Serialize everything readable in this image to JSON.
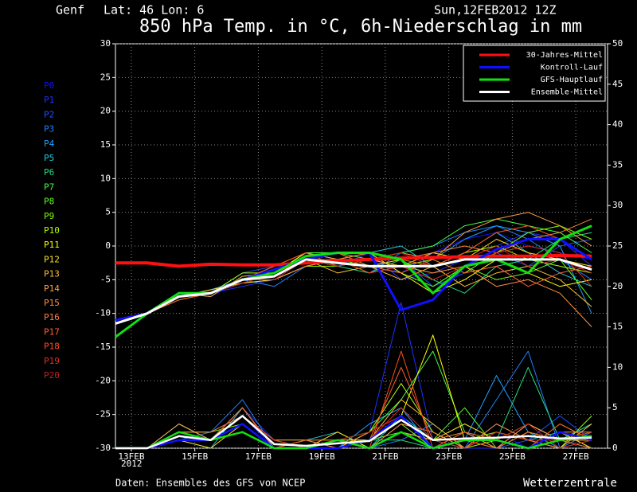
{
  "chart_data": {
    "type": "line",
    "location": "Genf",
    "coords": "Lat: 46 Lon: 6",
    "run": "Sun,12FEB2012 12Z",
    "title": "850 hPa Temp. in °C, 6h-Niederschlag in mm",
    "source": "Daten: Ensembles des GFS von NCEP",
    "brand": "Wetterzentrale",
    "year_label": "2012",
    "grid": true,
    "legend": "upper right",
    "x": [
      12.5,
      13.5,
      14.5,
      15.5,
      16.5,
      17.5,
      18.5,
      19.5,
      20.5,
      21.5,
      22.5,
      23.5,
      24.5,
      25.5,
      26.5,
      27.5
    ],
    "xlim": [
      12.5,
      28.0
    ],
    "xticks": [
      {
        "value": 13,
        "label": "13FEB"
      },
      {
        "value": 15,
        "label": "15FEB"
      },
      {
        "value": 17,
        "label": "17FEB"
      },
      {
        "value": 19,
        "label": "19FEB"
      },
      {
        "value": 21,
        "label": "21FEB"
      },
      {
        "value": 23,
        "label": "23FEB"
      },
      {
        "value": 25,
        "label": "25FEB"
      },
      {
        "value": 27,
        "label": "27FEB"
      }
    ],
    "ylim": [
      -30,
      30
    ],
    "yticks": [
      -30,
      -25,
      -20,
      -15,
      -10,
      -5,
      0,
      5,
      10,
      15,
      20,
      25,
      30
    ],
    "y2lim": [
      0,
      50
    ],
    "y2ticks": [
      0,
      5,
      10,
      15,
      20,
      25,
      30,
      35,
      40,
      45,
      50
    ],
    "series": [
      {
        "name": "30-Jahres-Mittel",
        "color": "#ff1010",
        "values": [
          -2.5,
          -2.5,
          -3,
          -2.7,
          -2.8,
          -2.8,
          -2.5,
          -2.2,
          -2,
          -1.8,
          -1.7,
          -1.6,
          -1.5,
          -1.5,
          -1.4,
          -1.5
        ]
      },
      {
        "name": "Kontroll-Lauf",
        "color": "#1010ff",
        "values": [
          -11,
          -10,
          -7,
          -7,
          -5,
          -3.5,
          -2,
          -1,
          -1,
          -9.5,
          -8,
          -3,
          -0.5,
          1,
          1,
          -2
        ],
        "precip": [
          0,
          0,
          1,
          1,
          3,
          0,
          0,
          0,
          1,
          4,
          0,
          1,
          1,
          0,
          2,
          1
        ]
      },
      {
        "name": "GFS-Hauptlauf",
        "color": "#10e010",
        "values": [
          -13.5,
          -10,
          -7,
          -7,
          -5,
          -4,
          -1.5,
          -1,
          -1,
          -2,
          -7,
          -3,
          -2,
          -4,
          1,
          3
        ],
        "precip": [
          0,
          0,
          2,
          1,
          2,
          0,
          0,
          1,
          0,
          2,
          0,
          1,
          1,
          0,
          1,
          1.5
        ]
      },
      {
        "name": "Ensemble-Mittel",
        "color": "#ffffff",
        "values": [
          -11.5,
          -10,
          -7.5,
          -7,
          -5,
          -4.5,
          -2,
          -2.5,
          -3,
          -3,
          -3,
          -2,
          -2,
          -2,
          -2,
          -3.5
        ],
        "precip": [
          0,
          0,
          1.5,
          1,
          4,
          0.5,
          0.3,
          0.6,
          0.9,
          3.5,
          1,
          1.2,
          1.3,
          1.5,
          1.2,
          1.3
        ]
      }
    ],
    "members": [
      {
        "name": "P0",
        "color": "#1010ff",
        "values": [
          -11.5,
          -10,
          -7,
          -7.5,
          -5,
          -4,
          -1,
          -2,
          -2,
          -4,
          -1,
          1,
          2,
          0,
          -1,
          -2
        ],
        "precip": [
          0,
          0,
          2,
          1,
          4,
          0,
          0,
          1,
          0,
          3,
          0,
          1,
          2,
          0,
          1,
          3
        ]
      },
      {
        "name": "P1",
        "color": "#2030ff",
        "values": [
          -11.5,
          -10,
          -7.5,
          -7,
          -6,
          -5,
          -2,
          -3,
          -1,
          -5,
          -4,
          -2,
          0,
          2,
          1,
          -3
        ],
        "precip": [
          0,
          0,
          1,
          1,
          5,
          1,
          0,
          0,
          2,
          18,
          1,
          0,
          0,
          3,
          1,
          0
        ]
      },
      {
        "name": "P2",
        "color": "#2050ff",
        "values": [
          -11.5,
          -10,
          -7,
          -7,
          -4,
          -3,
          -2,
          -1,
          -3,
          -2,
          -6,
          -4,
          -1,
          -3,
          0,
          1
        ],
        "precip": [
          0,
          0,
          3,
          1,
          3,
          0,
          1,
          0,
          1,
          2,
          0,
          2,
          0,
          1,
          4,
          1
        ]
      },
      {
        "name": "P3",
        "color": "#2080ff",
        "values": [
          -11.5,
          -10,
          -8,
          -7,
          -5,
          -6,
          -3,
          -2,
          -4,
          -1,
          0,
          2,
          3,
          1,
          -2,
          -5
        ],
        "precip": [
          0,
          0,
          1,
          2,
          6,
          0,
          0,
          1,
          0,
          1,
          3,
          0,
          6,
          12,
          0,
          2
        ]
      },
      {
        "name": "P4",
        "color": "#20a0ff",
        "values": [
          -11.5,
          -10,
          -7.5,
          -6.5,
          -5,
          -4,
          -1,
          -3,
          -2,
          -3,
          -2,
          1,
          3,
          2,
          0,
          -10
        ],
        "precip": [
          0,
          0,
          2,
          1,
          4,
          1,
          0,
          0,
          3,
          5,
          0,
          1,
          9,
          2,
          0,
          1
        ]
      },
      {
        "name": "P5",
        "color": "#20c8e0",
        "values": [
          -11.5,
          -10,
          -7,
          -7,
          -5.5,
          -5,
          -3,
          -2,
          -1,
          0,
          -3,
          -1,
          2,
          -1,
          -4,
          -6
        ],
        "precip": [
          0,
          0,
          1,
          0,
          5,
          0,
          1,
          2,
          0,
          4,
          1,
          0,
          3,
          1,
          2,
          0
        ]
      },
      {
        "name": "P6",
        "color": "#20e080",
        "values": [
          -11.5,
          -10,
          -7.5,
          -7,
          -5,
          -4,
          -2,
          -3,
          -4,
          -2,
          -5,
          -7,
          -3,
          -2,
          1,
          2
        ],
        "precip": [
          0,
          0,
          2,
          1,
          3,
          0,
          0,
          0,
          1,
          1,
          0,
          2,
          1,
          10,
          1,
          3
        ]
      },
      {
        "name": "P7",
        "color": "#40ff40",
        "values": [
          -11.5,
          -10,
          -7,
          -7.5,
          -4.5,
          -4,
          -1,
          -1,
          -2,
          -1,
          0,
          3,
          4,
          3,
          2,
          -1
        ],
        "precip": [
          0,
          0,
          3,
          1,
          4,
          1,
          0,
          1,
          2,
          6,
          12,
          2,
          1,
          0,
          3,
          1
        ]
      },
      {
        "name": "P8",
        "color": "#60ff20",
        "values": [
          -11.5,
          -10,
          -7.5,
          -7,
          -5,
          -3,
          -2,
          -2,
          -3,
          -4,
          -6,
          -3,
          -5,
          -4,
          -2,
          -8
        ],
        "precip": [
          0,
          0,
          1,
          1,
          5,
          0,
          0,
          0,
          1,
          2,
          1,
          5,
          0,
          2,
          1,
          0
        ]
      },
      {
        "name": "P9",
        "color": "#80ff00",
        "values": [
          -11.5,
          -10,
          -7,
          -7,
          -5,
          -5,
          -3,
          -3,
          -2,
          -3,
          -2,
          -4,
          -1,
          2,
          3,
          1
        ],
        "precip": [
          0,
          0,
          2,
          2,
          3,
          0,
          1,
          1,
          0,
          3,
          0,
          1,
          2,
          1,
          0,
          4
        ]
      },
      {
        "name": "P10",
        "color": "#b0ff00",
        "values": [
          -11.5,
          -10,
          -8,
          -7,
          -4,
          -4,
          -2,
          -1,
          -3,
          -2,
          -3,
          -1,
          0,
          -2,
          -3,
          -4
        ],
        "precip": [
          0,
          0,
          1,
          1,
          4,
          1,
          0,
          0,
          2,
          8,
          2,
          0,
          1,
          3,
          1,
          2
        ]
      },
      {
        "name": "P11",
        "color": "#ffff00",
        "values": [
          -11.5,
          -10,
          -7,
          -7,
          -5,
          -4,
          -1,
          -2,
          -1,
          -4,
          -7,
          -5,
          -2,
          -4,
          -6,
          -5
        ],
        "precip": [
          0,
          0,
          2,
          1,
          5,
          0,
          0,
          1,
          1,
          4,
          14,
          1,
          0,
          2,
          1,
          1
        ]
      },
      {
        "name": "P12",
        "color": "#ffe020",
        "values": [
          -11.5,
          -10,
          -7.5,
          -6.5,
          -5.5,
          -5,
          -3,
          -2,
          -4,
          -3,
          -1,
          -2,
          1,
          -1,
          -2,
          -3
        ],
        "precip": [
          0,
          0,
          1,
          0,
          3,
          0,
          0,
          2,
          0,
          2,
          1,
          3,
          1,
          0,
          2,
          0
        ]
      },
      {
        "name": "P13",
        "color": "#ffc030",
        "values": [
          -11.5,
          -10,
          -7,
          -7,
          -5,
          -4,
          -2,
          -4,
          -3,
          -5,
          -3,
          -6,
          -4,
          -3,
          -5,
          -9
        ],
        "precip": [
          0,
          0,
          2,
          1,
          4,
          1,
          1,
          0,
          1,
          6,
          3,
          0,
          2,
          1,
          0,
          3
        ]
      },
      {
        "name": "P14",
        "color": "#ffa040",
        "values": [
          -11.5,
          -10,
          -7.5,
          -7,
          -5,
          -3,
          -1,
          -2,
          -2,
          -1,
          -2,
          2,
          4,
          5,
          3,
          0
        ],
        "precip": [
          0,
          0,
          3,
          1,
          5,
          0,
          0,
          1,
          0,
          2,
          1,
          2,
          0,
          3,
          1,
          1
        ]
      },
      {
        "name": "P15",
        "color": "#ff9040",
        "values": [
          -11.5,
          -10,
          -7,
          -7.5,
          -4.5,
          -4,
          -2,
          -3,
          -2,
          -3,
          -4,
          -3,
          -6,
          -5,
          -7,
          -12
        ],
        "precip": [
          0,
          0,
          1,
          1,
          3,
          0,
          1,
          0,
          2,
          4,
          0,
          1,
          1,
          0,
          2,
          2
        ]
      },
      {
        "name": "P16",
        "color": "#ff8040",
        "values": [
          -11.5,
          -10,
          -7.5,
          -7,
          -5,
          -5,
          -3,
          -2,
          -1,
          -2,
          -1,
          0,
          -1,
          1,
          2,
          4
        ],
        "precip": [
          0,
          0,
          2,
          2,
          4,
          1,
          0,
          1,
          0,
          3,
          2,
          0,
          3,
          1,
          0,
          1
        ]
      },
      {
        "name": "P17",
        "color": "#ff6030",
        "values": [
          -11.5,
          -10,
          -7,
          -7,
          -5,
          -4,
          -2,
          -1,
          -3,
          -4,
          -2,
          -4,
          -3,
          -6,
          -4,
          -3
        ],
        "precip": [
          0,
          0,
          1,
          1,
          5,
          0,
          0,
          0,
          1,
          10,
          1,
          1,
          0,
          2,
          1,
          0
        ]
      },
      {
        "name": "P18",
        "color": "#ff5020",
        "values": [
          -11.5,
          -10,
          -8,
          -7,
          -5,
          -3,
          -1,
          -3,
          -2,
          -2,
          -3,
          -1,
          2,
          3,
          1,
          -2
        ],
        "precip": [
          0,
          0,
          2,
          1,
          3,
          0,
          1,
          1,
          0,
          12,
          0,
          2,
          1,
          0,
          3,
          1
        ]
      },
      {
        "name": "P19",
        "color": "#e03020",
        "values": [
          -11.5,
          -10,
          -7,
          -7,
          -5.5,
          -4,
          -2,
          -2,
          -4,
          -3,
          -5,
          -3,
          -1,
          0,
          -1,
          -6
        ],
        "precip": [
          0,
          0,
          1,
          1,
          4,
          1,
          0,
          0,
          1,
          5,
          1,
          0,
          2,
          1,
          1,
          2
        ]
      },
      {
        "name": "P20",
        "color": "#c02020",
        "values": [
          -11.5,
          -10,
          -7.5,
          -7,
          -5,
          -5,
          -2,
          -3,
          -2,
          -1,
          -3,
          -2,
          0,
          -3,
          -2,
          -4
        ],
        "precip": [
          0,
          0,
          2,
          1,
          3,
          0,
          0,
          1,
          2,
          4,
          0,
          1,
          1,
          3,
          0,
          1
        ]
      }
    ]
  }
}
